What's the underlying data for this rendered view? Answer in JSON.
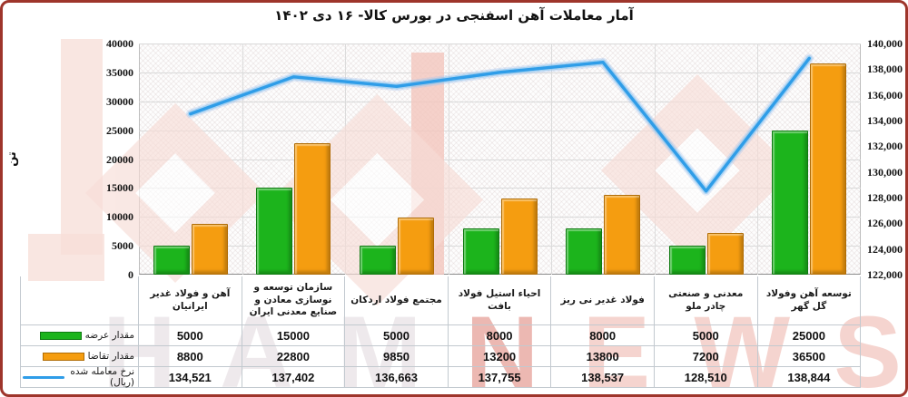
{
  "title": "آمار معاملات آهن اسفنجی در بورس کالا- ۱۶ دی ۱۴۰۲",
  "watermark": {
    "letters": [
      {
        "ch": "H",
        "color": "#d7cdd2"
      },
      {
        "ch": "A",
        "color": "#d7cdd2"
      },
      {
        "ch": "M",
        "color": "#d7cdd2"
      },
      {
        "ch": "N",
        "color": "#d2574a"
      },
      {
        "ch": "E",
        "color": "#e89a8e"
      },
      {
        "ch": "W",
        "color": "#e89a8e"
      },
      {
        "ch": "S",
        "color": "#e89a8e"
      }
    ]
  },
  "chart_data": {
    "type": "bar+line",
    "title": "آمار معاملات آهن اسفنجی در بورس کالا- ۱۶ دی ۱۴۰۲",
    "categories": [
      "آهن و فولاد غدیر ایرانیان",
      "سازمان توسعه و نوسازی معادن و صنایع معدنی ایران",
      "مجتمع فولاد اردکان",
      "احیاء استیل فولاد بافت",
      "فولاد غدیر نی ریز",
      "معدنی و صنعتی چادر ملو",
      "توسعه آهن وفولاد گل گهر"
    ],
    "series": [
      {
        "name": "مقدار عرضه",
        "type": "bar",
        "axis": "left",
        "color": "#1cb41c",
        "border_color": "#0e7a10",
        "values": [
          5000,
          15000,
          5000,
          8000,
          8000,
          5000,
          25000
        ],
        "display": [
          "5000",
          "15000",
          "5000",
          "8000",
          "8000",
          "5000",
          "25000"
        ]
      },
      {
        "name": "مقدار تقاضا",
        "type": "bar",
        "axis": "left",
        "color": "#f59d10",
        "border_color": "#b06c05",
        "values": [
          8800,
          22800,
          9850,
          13200,
          13800,
          7200,
          36500
        ],
        "display": [
          "8800",
          "22800",
          "9850",
          "13200",
          "13800",
          "7200",
          "36500"
        ]
      },
      {
        "name": "نرخ معامله شده (ریال)",
        "type": "line",
        "axis": "right",
        "color": "#2f9de8",
        "halo_color": "#a7c4ef",
        "values": [
          134521,
          137402,
          136663,
          137755,
          138537,
          128510,
          138844
        ],
        "display": [
          "134,521",
          "137,402",
          "136,663",
          "137,755",
          "138,537",
          "128,510",
          "138,844"
        ]
      }
    ],
    "left_axis": {
      "title": "تن",
      "min": 0,
      "max": 40000,
      "step": 5000
    },
    "right_axis": {
      "min": 122000,
      "max": 140000,
      "step": 2000
    },
    "grid": true,
    "legend_position": "table-row-headers"
  },
  "frame_color": "#9e352b"
}
